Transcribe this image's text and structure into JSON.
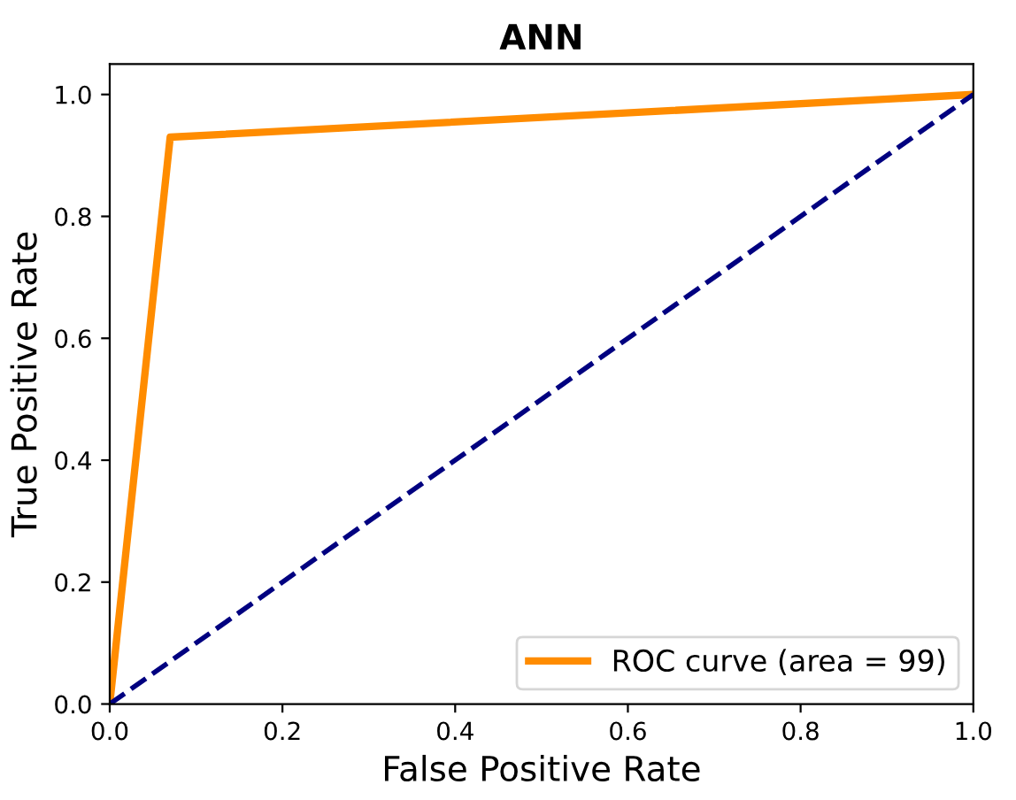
{
  "chart_data": {
    "type": "line",
    "title": "ANN",
    "xlabel": "False Positive Rate",
    "ylabel": "True Positive Rate",
    "x": [
      0,
      0.07,
      1
    ],
    "series": [
      {
        "name": "ROC curve (area = 99)",
        "color": "#ff8c00",
        "values": [
          0,
          0.93,
          1
        ],
        "line_style": "solid"
      },
      {
        "color": "#000080",
        "x": [
          0,
          1
        ],
        "values": [
          0,
          1
        ],
        "line_style": "dashed"
      }
    ],
    "xlim": [
      0,
      1
    ],
    "ylim": [
      0,
      1.05
    ],
    "xticks": [
      {
        "value": 0,
        "label": "0.0"
      },
      0.2,
      0.4,
      0.6,
      0.8,
      {
        "value": 1,
        "label": "1.0"
      }
    ],
    "yticks": [
      {
        "value": 0,
        "label": "0.0"
      },
      0.2,
      0.4,
      0.6,
      0.8,
      {
        "value": 1,
        "label": "1.0"
      }
    ],
    "legend": "lower right",
    "grid": false,
    "marker": "none"
  }
}
